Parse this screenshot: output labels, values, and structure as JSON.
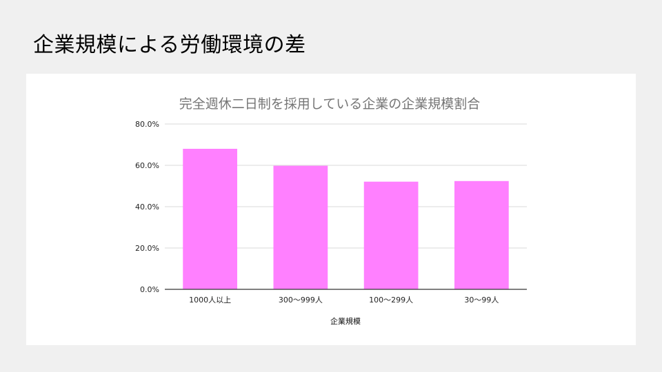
{
  "slide": {
    "title": "企業規模による労働環境の差"
  },
  "colors": {
    "bar": "#ff80ff",
    "gridline": "#d9d9d9",
    "axis": "#333333",
    "background": "#f0f0f0",
    "card": "#ffffff"
  },
  "chart_data": {
    "type": "bar",
    "title": "完全週休二日制を採用している企業の企業規模割合",
    "xlabel": "企業規模",
    "ylabel": "",
    "categories": [
      "1000人以上",
      "300～999人",
      "100～299人",
      "30～99人"
    ],
    "values": [
      68.0,
      59.8,
      52.1,
      52.4
    ],
    "y_tick_labels": [
      "0.0%",
      "20.0%",
      "40.0%",
      "60.0%",
      "80.0%"
    ],
    "y_ticks": [
      0,
      20,
      40,
      60,
      80
    ],
    "ylim": [
      0,
      80
    ],
    "grid": true,
    "legend": "none"
  }
}
